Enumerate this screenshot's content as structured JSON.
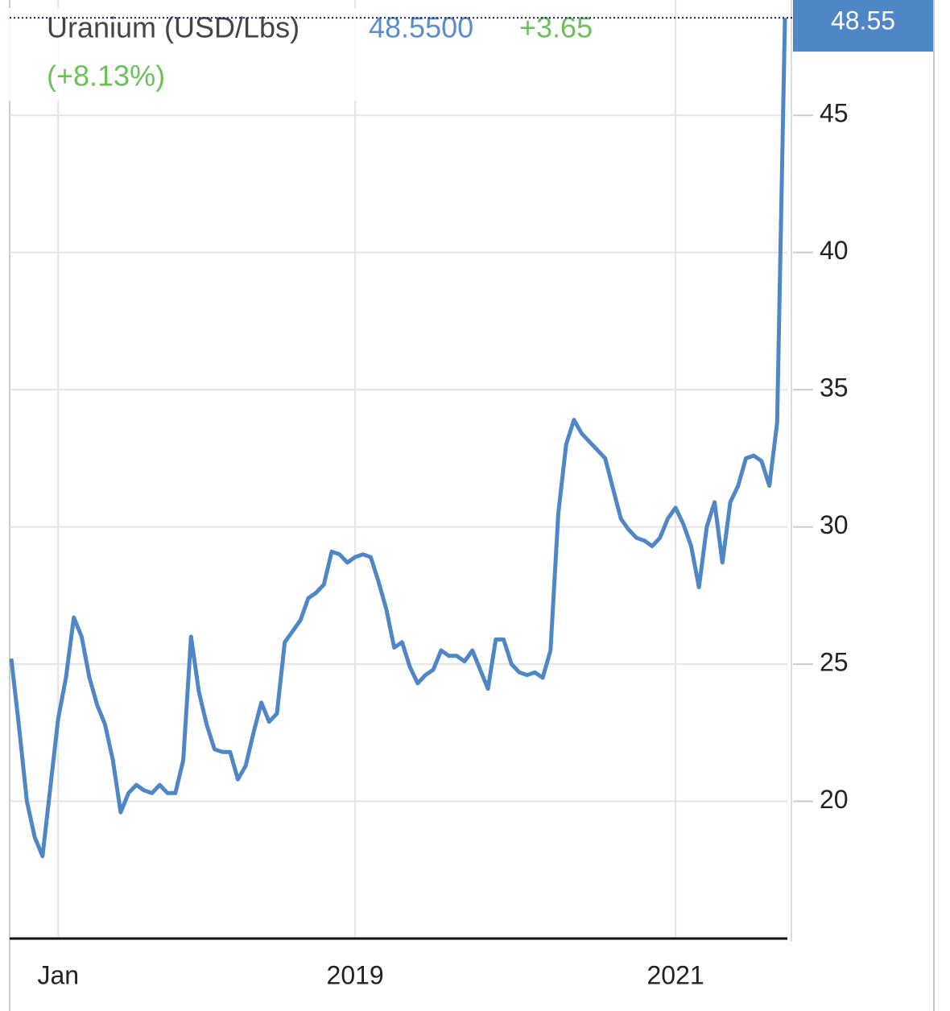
{
  "chart_data": {
    "type": "line",
    "title": "Uranium (USD/Lbs)",
    "price": "48.5500",
    "change": "+3.65",
    "change_pct": "(+8.13%)",
    "categories": [
      null,
      null,
      null,
      null,
      null,
      null,
      "Jan",
      null,
      null,
      null,
      null,
      null,
      null,
      null,
      null,
      null,
      null,
      null,
      null,
      null,
      null,
      null,
      null,
      null,
      null,
      null,
      null,
      null,
      null,
      null,
      null,
      null,
      null,
      null,
      null,
      null,
      null,
      null,
      null,
      null,
      null,
      null,
      null,
      null,
      "2019",
      null,
      null,
      null,
      null,
      null,
      null,
      null,
      null,
      null,
      null,
      null,
      null,
      null,
      null,
      null,
      null,
      null,
      null,
      null,
      null,
      null,
      null,
      null,
      null,
      null,
      null,
      null,
      null,
      null,
      null,
      null,
      null,
      null,
      null,
      null,
      null,
      null,
      null,
      null,
      null,
      "2021",
      null,
      null,
      null,
      null,
      null,
      null,
      null,
      null,
      null,
      null,
      null,
      null,
      null,
      null
    ],
    "series": [
      {
        "name": "Uranium",
        "color": "#4f86c6",
        "values": [
          25.2,
          22.7,
          20.0,
          18.7,
          18.0,
          20.5,
          23.0,
          24.5,
          26.7,
          26.0,
          24.5,
          23.5,
          22.8,
          21.5,
          19.6,
          20.3,
          20.6,
          20.4,
          20.3,
          20.6,
          20.3,
          20.3,
          21.5,
          26.0,
          24.0,
          22.8,
          21.9,
          21.8,
          21.8,
          20.8,
          21.3,
          22.5,
          23.6,
          22.9,
          23.2,
          25.8,
          26.2,
          26.6,
          27.4,
          27.6,
          27.9,
          29.1,
          29.0,
          28.7,
          28.9,
          29.0,
          28.9,
          28.0,
          27.0,
          25.6,
          25.8,
          24.9,
          24.3,
          24.6,
          24.8,
          25.5,
          25.3,
          25.3,
          25.1,
          25.5,
          24.8,
          24.1,
          25.9,
          25.9,
          25.0,
          24.7,
          24.6,
          24.7,
          24.5,
          25.5,
          30.5,
          33.0,
          33.9,
          33.4,
          33.1,
          32.8,
          32.5,
          31.4,
          30.3,
          29.9,
          29.6,
          29.5,
          29.3,
          29.6,
          30.3,
          30.7,
          30.1,
          29.3,
          27.8,
          30.0,
          30.9,
          28.7,
          30.9,
          31.5,
          32.5,
          32.6,
          32.4,
          31.5,
          33.8,
          48.55
        ]
      }
    ],
    "ylim": [
      15,
      49.2
    ],
    "yticks": [
      20,
      25,
      30,
      35,
      40,
      45
    ],
    "grid": true
  }
}
